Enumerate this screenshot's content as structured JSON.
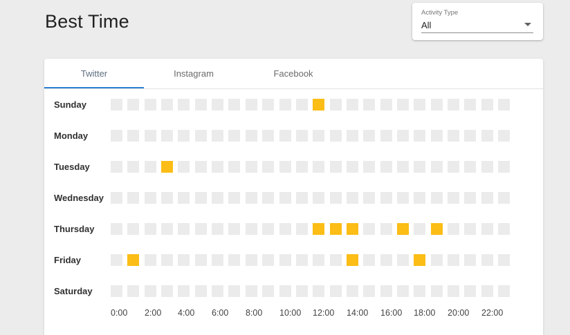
{
  "page": {
    "title": "Best Time"
  },
  "activity_select": {
    "label": "Activity Type",
    "value": "All"
  },
  "tabs": [
    {
      "label": "Twitter",
      "active": true
    },
    {
      "label": "Instagram",
      "active": false
    },
    {
      "label": "Facebook",
      "active": false
    }
  ],
  "heatmap": {
    "days": [
      "Sunday",
      "Monday",
      "Tuesday",
      "Wednesday",
      "Thursday",
      "Friday",
      "Saturday"
    ],
    "hours_per_day": 24,
    "hour_labels": [
      "0:00",
      "2:00",
      "4:00",
      "6:00",
      "8:00",
      "10:00",
      "12:00",
      "14:00",
      "16:00",
      "18:00",
      "20:00",
      "22:00"
    ],
    "highlighted": {
      "Sunday": [
        12
      ],
      "Monday": [],
      "Tuesday": [
        3
      ],
      "Wednesday": [],
      "Thursday": [
        12,
        13,
        14,
        17,
        19
      ],
      "Friday": [
        1,
        14,
        18
      ],
      "Saturday": []
    },
    "colors": {
      "active": "#fbbd16",
      "inactive": "#ebebeb"
    }
  },
  "colors": {
    "accent": "#2b7fd1",
    "background": "#ececec"
  }
}
